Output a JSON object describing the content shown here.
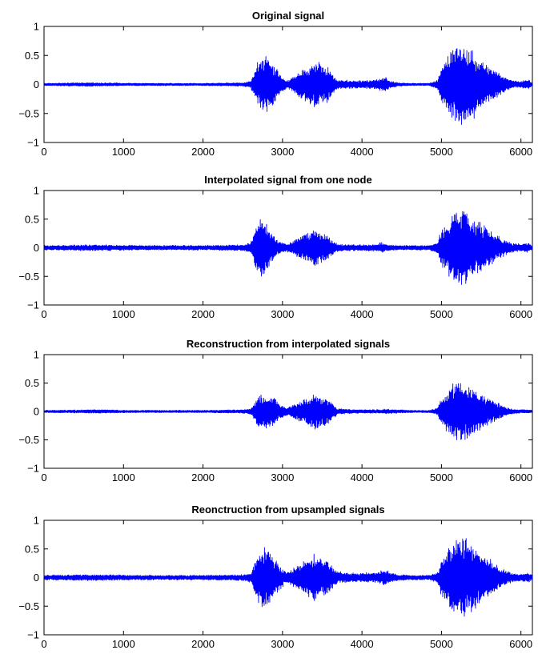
{
  "figure": {
    "background": "#ffffff",
    "line_color": "#0000ff",
    "axis_color": "#000000"
  },
  "chart_data": [
    {
      "type": "line",
      "title": "Original signal",
      "xlabel": "",
      "ylabel": "",
      "xlim": [
        0,
        6144
      ],
      "ylim": [
        -1,
        1
      ],
      "xticks": [
        0,
        1000,
        2000,
        3000,
        4000,
        5000,
        6000
      ],
      "xtick_labels": [
        "0",
        "1000",
        "2000",
        "3000",
        "4000",
        "5000",
        "6000"
      ],
      "yticks": [
        -1,
        -0.5,
        0,
        0.5,
        1
      ],
      "ytick_labels": [
        "−1",
        "−0.5",
        "0",
        "0.5",
        "1"
      ],
      "grid": false,
      "series": [
        {
          "color": "#0000ff",
          "envelope": {
            "description": "approximate amplitude envelope (x in samples, peak |y|)",
            "x": [
              0,
              600,
              1200,
              2000,
              2500,
              2600,
              2650,
              2700,
              2780,
              2860,
              2950,
              3050,
              3150,
              3300,
              3420,
              3560,
              3650,
              3700,
              3800,
              4000,
              4200,
              4300,
              4350,
              4450,
              4600,
              4850,
              4950,
              5000,
              5100,
              5200,
              5300,
              5400,
              5500,
              5600,
              5700,
              5800,
              5900,
              6000,
              6100,
              6144
            ],
            "amp": [
              0.02,
              0.03,
              0.02,
              0.02,
              0.03,
              0.06,
              0.22,
              0.4,
              0.5,
              0.42,
              0.2,
              0.06,
              0.14,
              0.3,
              0.4,
              0.3,
              0.12,
              0.08,
              0.07,
              0.06,
              0.08,
              0.13,
              0.06,
              0.03,
              0.02,
              0.02,
              0.08,
              0.3,
              0.55,
              0.68,
              0.64,
              0.55,
              0.4,
              0.3,
              0.22,
              0.12,
              0.06,
              0.05,
              0.08,
              0.02
            ]
          }
        }
      ]
    },
    {
      "type": "line",
      "title": "Interpolated signal from one node",
      "xlabel": "",
      "ylabel": "",
      "xlim": [
        0,
        6144
      ],
      "ylim": [
        -1,
        1
      ],
      "xticks": [
        0,
        1000,
        2000,
        3000,
        4000,
        5000,
        6000
      ],
      "xtick_labels": [
        "0",
        "1000",
        "2000",
        "3000",
        "4000",
        "5000",
        "6000"
      ],
      "yticks": [
        -1,
        -0.5,
        0,
        0.5,
        1
      ],
      "ytick_labels": [
        "−1",
        "−0.5",
        "0",
        "0.5",
        "1"
      ],
      "grid": false,
      "series": [
        {
          "color": "#0000ff",
          "envelope": {
            "description": "approximate amplitude envelope (x in samples, peak |y|)",
            "x": [
              0,
              600,
              1200,
              2000,
              2500,
              2600,
              2650,
              2700,
              2760,
              2800,
              2860,
              2950,
              3050,
              3150,
              3300,
              3420,
              3560,
              3650,
              3700,
              3800,
              4000,
              4200,
              4250,
              4300,
              4450,
              4600,
              4850,
              4950,
              5000,
              5100,
              5200,
              5300,
              5400,
              5500,
              5600,
              5700,
              5800,
              5900,
              6000,
              6100,
              6144
            ],
            "amp": [
              0.04,
              0.05,
              0.04,
              0.04,
              0.05,
              0.08,
              0.3,
              0.45,
              0.55,
              0.4,
              0.25,
              0.12,
              0.06,
              0.12,
              0.25,
              0.32,
              0.2,
              0.1,
              0.06,
              0.05,
              0.05,
              0.06,
              0.09,
              0.05,
              0.04,
              0.04,
              0.04,
              0.1,
              0.3,
              0.5,
              0.66,
              0.6,
              0.5,
              0.4,
              0.3,
              0.22,
              0.12,
              0.07,
              0.06,
              0.08,
              0.04
            ]
          }
        }
      ]
    },
    {
      "type": "line",
      "title": "Reconstruction from interpolated signals",
      "xlabel": "",
      "ylabel": "",
      "xlim": [
        0,
        6144
      ],
      "ylim": [
        -1,
        1
      ],
      "xticks": [
        0,
        1000,
        2000,
        3000,
        4000,
        5000,
        6000
      ],
      "xtick_labels": [
        "0",
        "1000",
        "2000",
        "3000",
        "4000",
        "5000",
        "6000"
      ],
      "yticks": [
        -1,
        -0.5,
        0,
        0.5,
        1
      ],
      "ytick_labels": [
        "−1",
        "−0.5",
        "0",
        "0.5",
        "1"
      ],
      "grid": false,
      "series": [
        {
          "color": "#0000ff",
          "envelope": {
            "description": "approximate amplitude envelope (x in samples, peak |y|)",
            "x": [
              0,
              600,
              1200,
              2000,
              2500,
              2600,
              2650,
              2700,
              2780,
              2860,
              2950,
              3050,
              3150,
              3300,
              3420,
              3560,
              3650,
              3700,
              3800,
              4000,
              4200,
              4300,
              4450,
              4600,
              4850,
              4950,
              5000,
              5100,
              5200,
              5300,
              5400,
              5500,
              5600,
              5700,
              5800,
              5900,
              6000,
              6100,
              6144
            ],
            "amp": [
              0.02,
              0.03,
              0.02,
              0.02,
              0.03,
              0.05,
              0.16,
              0.28,
              0.3,
              0.26,
              0.15,
              0.06,
              0.12,
              0.22,
              0.3,
              0.22,
              0.1,
              0.05,
              0.04,
              0.03,
              0.03,
              0.04,
              0.03,
              0.02,
              0.02,
              0.06,
              0.22,
              0.4,
              0.5,
              0.47,
              0.4,
              0.3,
              0.22,
              0.15,
              0.08,
              0.04,
              0.03,
              0.03,
              0.02
            ]
          }
        }
      ]
    },
    {
      "type": "line",
      "title": "Reonctruction from upsampled signals",
      "xlabel": "",
      "ylabel": "",
      "xlim": [
        0,
        6144
      ],
      "ylim": [
        -1,
        1
      ],
      "xticks": [
        0,
        1000,
        2000,
        3000,
        4000,
        5000,
        6000
      ],
      "xtick_labels": [
        "0",
        "1000",
        "2000",
        "3000",
        "4000",
        "5000",
        "6000"
      ],
      "yticks": [
        -1,
        -0.5,
        0,
        0.5,
        1
      ],
      "ytick_labels": [
        "−1",
        "−0.5",
        "0",
        "0.5",
        "1"
      ],
      "grid": false,
      "series": [
        {
          "color": "#0000ff",
          "envelope": {
            "description": "approximate amplitude envelope (x in samples, peak |y|)",
            "x": [
              0,
              600,
              1200,
              2000,
              2500,
              2600,
              2650,
              2700,
              2780,
              2860,
              2950,
              3050,
              3150,
              3300,
              3420,
              3560,
              3650,
              3700,
              3800,
              4000,
              4200,
              4300,
              4350,
              4450,
              4600,
              4850,
              4950,
              5000,
              5100,
              5200,
              5300,
              5400,
              5500,
              5600,
              5700,
              5800,
              5900,
              6000,
              6100,
              6144
            ],
            "amp": [
              0.04,
              0.05,
              0.04,
              0.04,
              0.05,
              0.08,
              0.25,
              0.42,
              0.5,
              0.42,
              0.22,
              0.08,
              0.16,
              0.3,
              0.4,
              0.3,
              0.14,
              0.1,
              0.08,
              0.07,
              0.09,
              0.14,
              0.08,
              0.05,
              0.04,
              0.04,
              0.1,
              0.3,
              0.55,
              0.66,
              0.62,
              0.55,
              0.4,
              0.3,
              0.22,
              0.12,
              0.07,
              0.06,
              0.08,
              0.04
            ]
          }
        }
      ]
    }
  ]
}
